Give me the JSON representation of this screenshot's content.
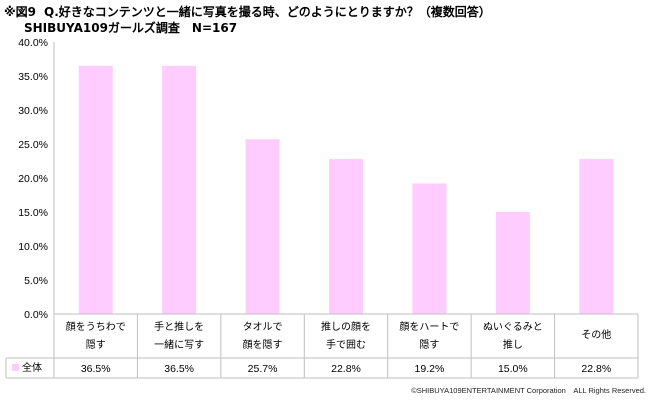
{
  "header": {
    "figure_label": "※図9",
    "question": "Q.好きなコンテンツと一緒に写真を撮る時、どのようにとりますか？（複数回答）",
    "survey": "SHIBUYA109ガールズ調査　N=167"
  },
  "footer": {
    "copyright": "©SHIBUYA109ENTERTAINMENT Corporation　ALL Rights Reserved."
  },
  "chart_data": {
    "type": "bar",
    "categories": [
      [
        "顔をうちわで",
        "隠す"
      ],
      [
        "手と推しを",
        "一緒に写す"
      ],
      [
        "タオルで",
        "顔を隠す"
      ],
      [
        "推しの顔を",
        "手で囲む"
      ],
      [
        "顔をハートで",
        "隠す"
      ],
      [
        "ぬいぐるみと",
        "推し"
      ],
      [
        "その他"
      ]
    ],
    "series": [
      {
        "name": "全体",
        "values": [
          36.5,
          36.5,
          25.7,
          22.8,
          19.2,
          15.0,
          22.8
        ],
        "labels": [
          "36.5%",
          "36.5%",
          "25.7%",
          "22.8%",
          "19.2%",
          "15.0%",
          "22.8%"
        ],
        "color": "#ffccff"
      }
    ],
    "yticks": [
      "0.0%",
      "5.0%",
      "10.0%",
      "15.0%",
      "20.0%",
      "25.0%",
      "30.0%",
      "35.0%",
      "40.0%"
    ],
    "ylim": [
      0,
      40
    ],
    "data_table": true,
    "grid": false,
    "colors": {
      "axis": "#bfbfbf",
      "bar": "#ffccff"
    }
  }
}
